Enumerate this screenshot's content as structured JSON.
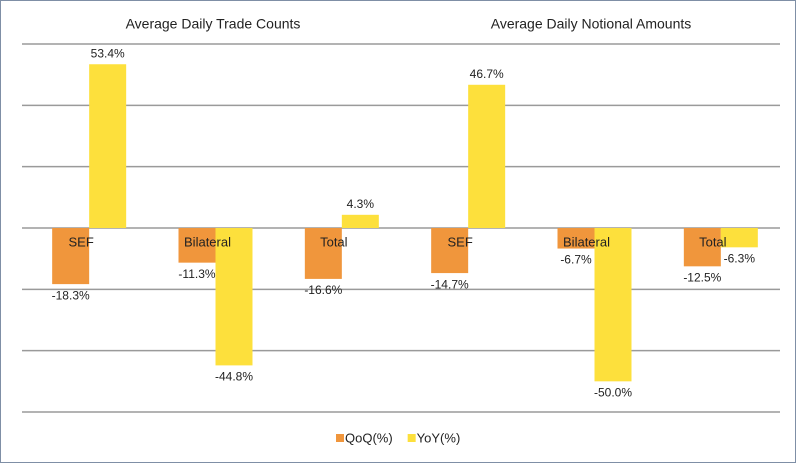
{
  "chart_data": {
    "type": "bar",
    "panel_titles": [
      "Average Daily Trade Counts",
      "Average Daily Notional Amounts"
    ],
    "categories": [
      "SEF",
      "Bilateral",
      "Total",
      "SEF",
      "Bilateral",
      "Total"
    ],
    "series": [
      {
        "name": "QoQ(%)",
        "color": "#f0963c",
        "values": [
          -18.3,
          -11.3,
          -16.6,
          -14.7,
          -6.7,
          -12.5
        ],
        "value_labels": [
          "-18.3%",
          "-11.3%",
          "-16.6%",
          "-14.7%",
          "-6.7%",
          "-12.5%"
        ]
      },
      {
        "name": "YoY(%)",
        "color": "#fde03c",
        "values": [
          53.4,
          -44.8,
          4.3,
          46.7,
          -50.0,
          -6.3
        ],
        "value_labels": [
          "53.4%",
          "-44.8%",
          "4.3%",
          "46.7%",
          "-50.0%",
          "-6.3%"
        ]
      }
    ],
    "ylim": [
      -60,
      60
    ],
    "yticks": [
      -60,
      -40,
      -20,
      0,
      20,
      40,
      60
    ],
    "grid": true,
    "legend": "bottom"
  }
}
